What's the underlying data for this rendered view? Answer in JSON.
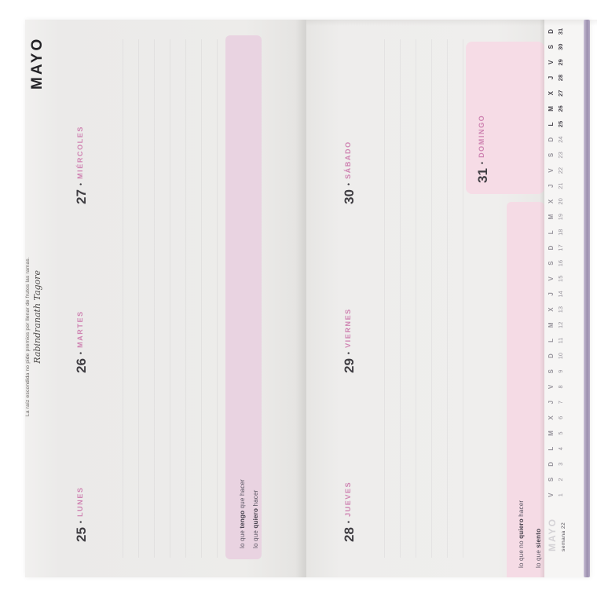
{
  "month_title": "MAYO",
  "quote": {
    "text": "La raíz escondida no pide premios por llenar de frutos las ramas.",
    "author": "Rabindranath Tagore"
  },
  "separator": "•",
  "week_days": [
    {
      "number": "25",
      "name": "LUNES"
    },
    {
      "number": "26",
      "name": "MARTES"
    },
    {
      "number": "27",
      "name": "MIÉRCOLES"
    },
    {
      "number": "28",
      "name": "JUEVES"
    },
    {
      "number": "29",
      "name": "VIERNES"
    },
    {
      "number": "30",
      "name": "SÁBADO"
    },
    {
      "number": "31",
      "name": "DOMINGO"
    }
  ],
  "prompts": {
    "monday_page": [
      {
        "pre": "lo que ",
        "bold": "tengo",
        "post": " que hacer"
      },
      {
        "pre": "lo que ",
        "bold": "quiero",
        "post": " hacer"
      }
    ],
    "thursday_page": [
      {
        "pre": "lo que no ",
        "bold": "quiero",
        "post": " hacer"
      },
      {
        "pre": "lo que ",
        "bold": "siento",
        "post": ""
      }
    ]
  },
  "mini_calendar": {
    "month_label": "MAYO",
    "week_label": "semana 22",
    "highlight_from": 25,
    "highlight_to": 31,
    "days": [
      {
        "n": "1",
        "d": "V"
      },
      {
        "n": "2",
        "d": "S"
      },
      {
        "n": "3",
        "d": "D"
      },
      {
        "n": "4",
        "d": "L"
      },
      {
        "n": "5",
        "d": "M"
      },
      {
        "n": "6",
        "d": "X"
      },
      {
        "n": "7",
        "d": "J"
      },
      {
        "n": "8",
        "d": "V"
      },
      {
        "n": "9",
        "d": "S"
      },
      {
        "n": "10",
        "d": "D"
      },
      {
        "n": "11",
        "d": "L"
      },
      {
        "n": "12",
        "d": "M"
      },
      {
        "n": "13",
        "d": "X"
      },
      {
        "n": "14",
        "d": "J"
      },
      {
        "n": "15",
        "d": "V"
      },
      {
        "n": "16",
        "d": "S"
      },
      {
        "n": "17",
        "d": "D"
      },
      {
        "n": "18",
        "d": "L"
      },
      {
        "n": "19",
        "d": "M"
      },
      {
        "n": "20",
        "d": "X"
      },
      {
        "n": "21",
        "d": "J"
      },
      {
        "n": "22",
        "d": "V"
      },
      {
        "n": "23",
        "d": "S"
      },
      {
        "n": "24",
        "d": "D"
      },
      {
        "n": "25",
        "d": "L"
      },
      {
        "n": "26",
        "d": "M"
      },
      {
        "n": "27",
        "d": "X"
      },
      {
        "n": "28",
        "d": "J"
      },
      {
        "n": "29",
        "d": "V"
      },
      {
        "n": "30",
        "d": "S"
      },
      {
        "n": "31",
        "d": "D"
      }
    ]
  },
  "colors": {
    "accent_pink_text": "#cf84b2",
    "band_pink_monday_page": "#e9d3e1",
    "band_pink_thursday_page": "#f5dbe5",
    "page": "#edeceb",
    "cover_edge": "#9c8fae",
    "ink_dark": "#3f3d42"
  }
}
